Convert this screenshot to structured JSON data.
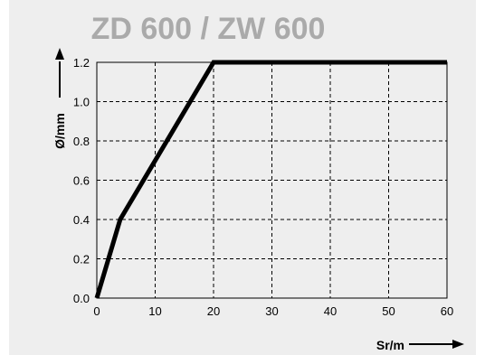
{
  "chart_data": {
    "type": "line",
    "title": "ZD 600 / ZW 600",
    "xlabel": "Sr/m",
    "ylabel": "Ø/mm",
    "xlim": [
      0,
      60
    ],
    "ylim": [
      0,
      1.2
    ],
    "x_ticks": [
      "0",
      "10",
      "20",
      "30",
      "40",
      "50",
      "60"
    ],
    "y_ticks": [
      "0.0",
      "0.2",
      "0.4",
      "0.6",
      "0.8",
      "1.0",
      "1.2"
    ],
    "grid": true,
    "grid_style": "dashed",
    "series": [
      {
        "x": [
          0,
          4,
          20,
          60
        ],
        "y": [
          0,
          0.4,
          1.2,
          1.2
        ],
        "color": "#000000"
      }
    ]
  }
}
